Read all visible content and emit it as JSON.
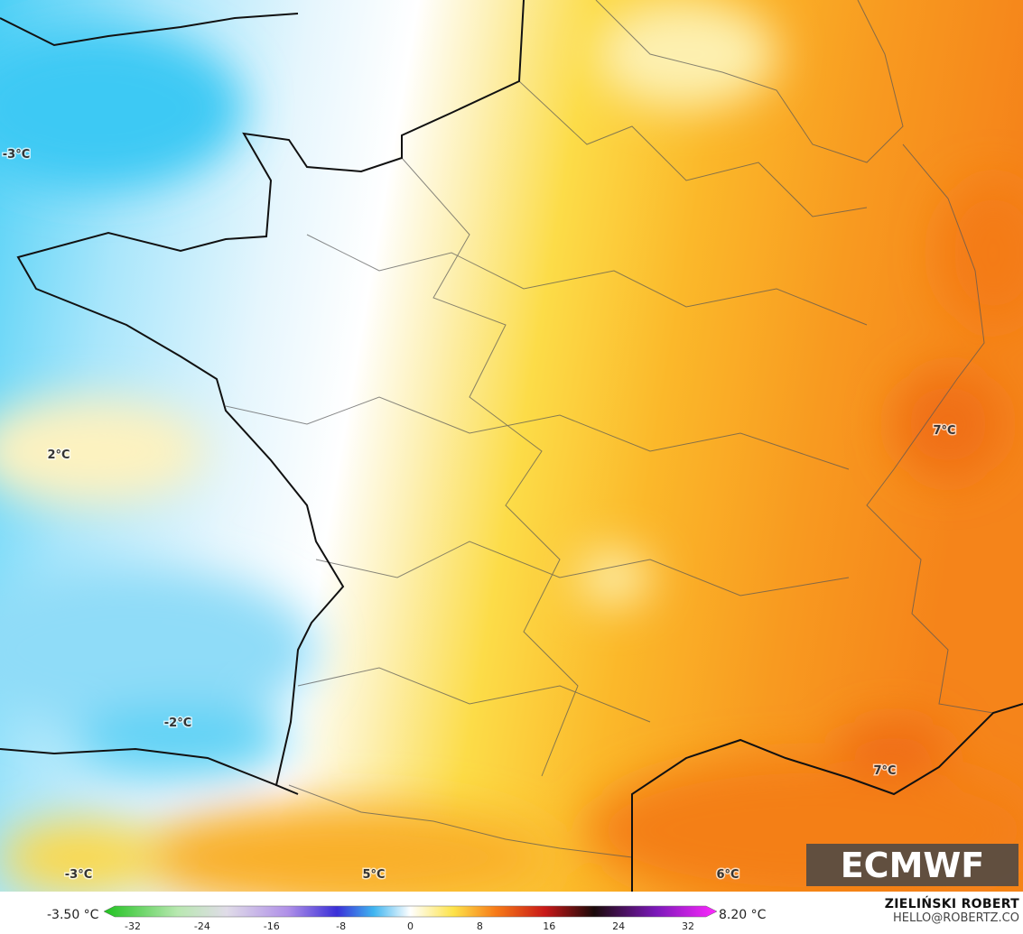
{
  "map": {
    "labels": [
      {
        "text": "-3°C"
      },
      {
        "text": "2°C"
      },
      {
        "text": "-2°C"
      },
      {
        "text": "-3°C"
      },
      {
        "text": "5°C"
      },
      {
        "text": "6°C"
      },
      {
        "text": "7°C"
      },
      {
        "text": "7°C"
      }
    ]
  },
  "colorbar": {
    "min_label": "-3.50 °C",
    "max_label": "8.20 °C",
    "ticks": [
      -32,
      -24,
      -16,
      -8,
      0,
      8,
      16,
      24,
      32
    ]
  },
  "credits": {
    "author": "ZIELIŃSKI ROBERT",
    "email": "HELLO@ROBERTZ.CO"
  },
  "logo": "ECMWF"
}
